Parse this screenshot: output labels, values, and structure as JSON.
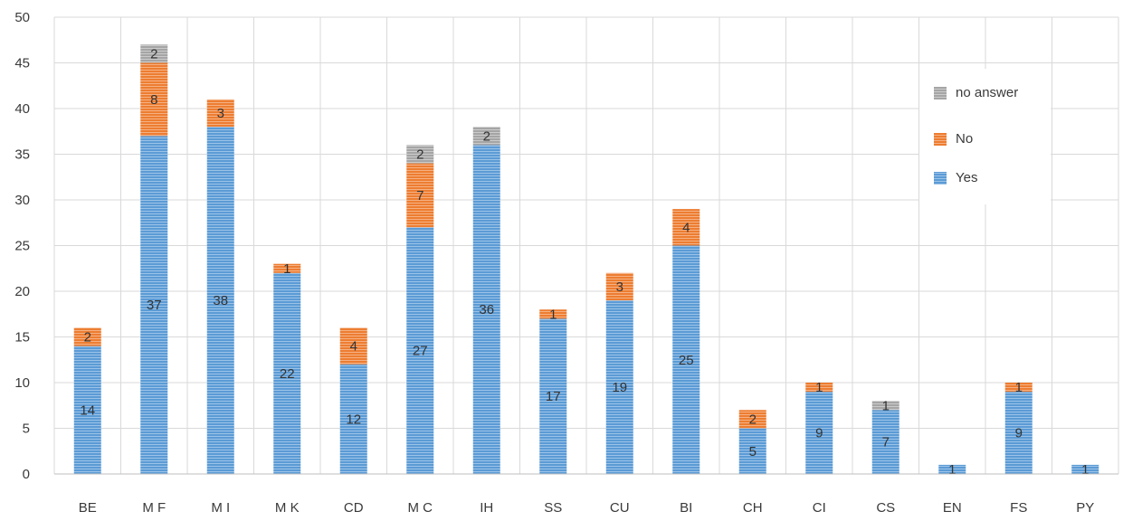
{
  "chart_data": {
    "type": "bar",
    "stacked": true,
    "categories": [
      "BE",
      "M F",
      "M I",
      "M K",
      "CD",
      "M C",
      "IH",
      "SS",
      "CU",
      "BI",
      "CH",
      "CI",
      "CS",
      "EN",
      "FS",
      "PY"
    ],
    "series": [
      {
        "name": "Yes",
        "color": "#5b9bd5",
        "values": [
          14,
          37,
          38,
          22,
          12,
          27,
          36,
          17,
          19,
          25,
          5,
          9,
          7,
          1,
          9,
          1
        ]
      },
      {
        "name": "No",
        "color": "#ed7d31",
        "values": [
          2,
          8,
          3,
          1,
          4,
          7,
          0,
          1,
          3,
          4,
          2,
          1,
          0,
          0,
          1,
          0
        ]
      },
      {
        "name": "no answer",
        "color": "#a5a5a5",
        "values": [
          0,
          2,
          0,
          0,
          0,
          2,
          2,
          0,
          0,
          0,
          0,
          0,
          1,
          0,
          0,
          0
        ]
      }
    ],
    "y_ticks": [
      "0",
      "5",
      "10",
      "15",
      "20",
      "25",
      "30",
      "35",
      "40",
      "45",
      "50"
    ],
    "ylim": [
      0,
      50
    ],
    "grid": true,
    "legend_position": "top-right",
    "legend_order": [
      "no answer",
      "No",
      "Yes"
    ],
    "title": "",
    "xlabel": "",
    "ylabel": ""
  }
}
